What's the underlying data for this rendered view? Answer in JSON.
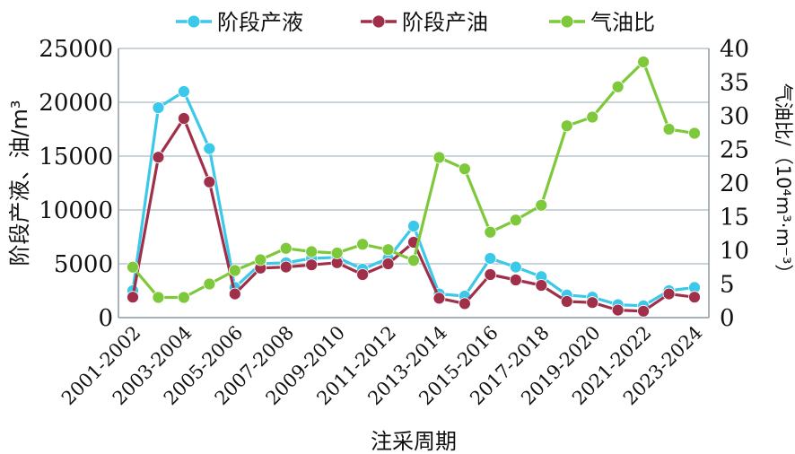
{
  "chart_data": {
    "type": "line",
    "xlabel": "注采周期",
    "ylabel_left": "阶段产液、油/m³",
    "ylabel_right": "气油比/（10⁴m³·m⁻³）",
    "ylim_left": [
      0,
      25000
    ],
    "ylim_right": [
      0,
      40
    ],
    "yticks_left": [
      "0",
      "5000",
      "10000",
      "15000",
      "20000",
      "25000"
    ],
    "yticks_right": [
      "0",
      "5",
      "10",
      "15",
      "20",
      "25",
      "30",
      "35",
      "40"
    ],
    "grid": "horizontal",
    "legend_position": "top",
    "x": [
      "2001-2002",
      "2002-2003",
      "2003-2004",
      "2004-2005",
      "2005-2006",
      "2006-2007",
      "2007-2008",
      "2008-2009",
      "2009-2010",
      "2010-2011",
      "2011-2012",
      "2012-2013",
      "2013-2014",
      "2014-2015",
      "2015-2016",
      "2016-2017",
      "2017-2018",
      "2018-2019",
      "2019-2020",
      "2020-2021",
      "2021-2022",
      "2022-2023",
      "2023-2024"
    ],
    "x_tick_labels": [
      "2001-2002",
      "2003-2004",
      "2005-2006",
      "2007-2008",
      "2009-2010",
      "2011-2012",
      "2013-2014",
      "2015-2016",
      "2017-2018",
      "2019-2020",
      "2021-2022",
      "2023-2024"
    ],
    "series": [
      {
        "name": "阶段产液",
        "axis": "left",
        "color": "#3cc8e8",
        "values": [
          2500,
          19500,
          21000,
          15700,
          2800,
          5000,
          5100,
          5500,
          5600,
          4500,
          5500,
          8500,
          2200,
          2000,
          5500,
          4700,
          3800,
          2100,
          1900,
          1200,
          1100,
          2500,
          2800
        ]
      },
      {
        "name": "阶段产油",
        "axis": "left",
        "color": "#a0304a",
        "values": [
          1900,
          14900,
          18500,
          12600,
          2200,
          4600,
          4700,
          4900,
          5100,
          4000,
          5000,
          7000,
          1800,
          1300,
          4000,
          3500,
          3000,
          1500,
          1400,
          700,
          600,
          2200,
          1900
        ]
      },
      {
        "name": "气油比",
        "axis": "right",
        "color": "#7ec83c",
        "values": [
          7.5,
          3,
          3,
          5,
          7,
          8.6,
          10.3,
          9.8,
          9.6,
          10.9,
          10.1,
          8.5,
          23.8,
          22.1,
          12.7,
          14.5,
          16.7,
          28.5,
          29.8,
          34.3,
          38,
          28,
          27.4
        ]
      }
    ]
  }
}
